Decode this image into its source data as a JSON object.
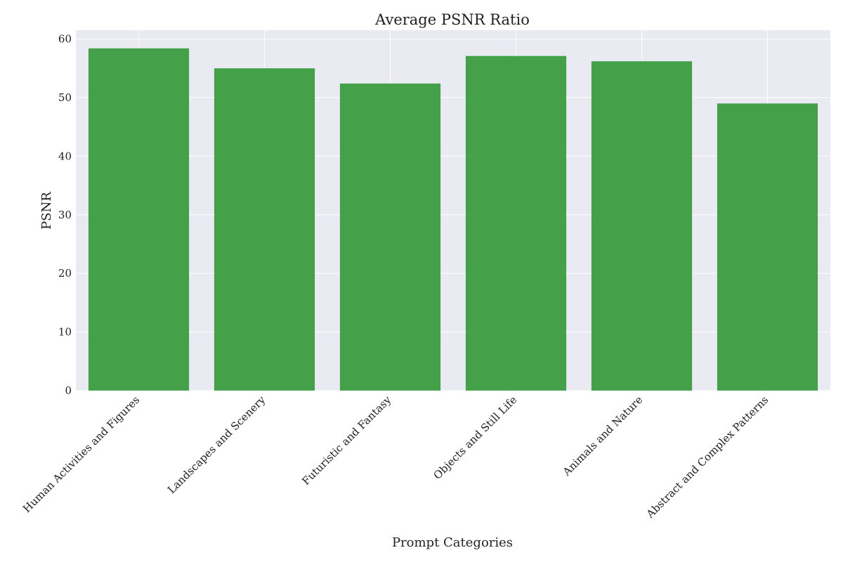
{
  "chart_data": {
    "type": "bar",
    "title": "Average PSNR Ratio",
    "xlabel": "Prompt Categories",
    "ylabel": "PSNR",
    "categories": [
      "Human Activities and Figures",
      "Landscapes and Scenery",
      "Futuristic and Fantasy",
      "Objects and Still Life",
      "Animals and Nature",
      "Abstract and Complex Patterns"
    ],
    "values": [
      58.4,
      55.0,
      52.4,
      57.1,
      56.2,
      49.0
    ],
    "ylim": [
      0,
      61.5
    ],
    "yticks": [
      0,
      10,
      20,
      30,
      40,
      50,
      60
    ],
    "grid": true,
    "bar_color": "#2e9631",
    "background_color": "#eaeaf2",
    "grid_color": "#ffffff"
  }
}
